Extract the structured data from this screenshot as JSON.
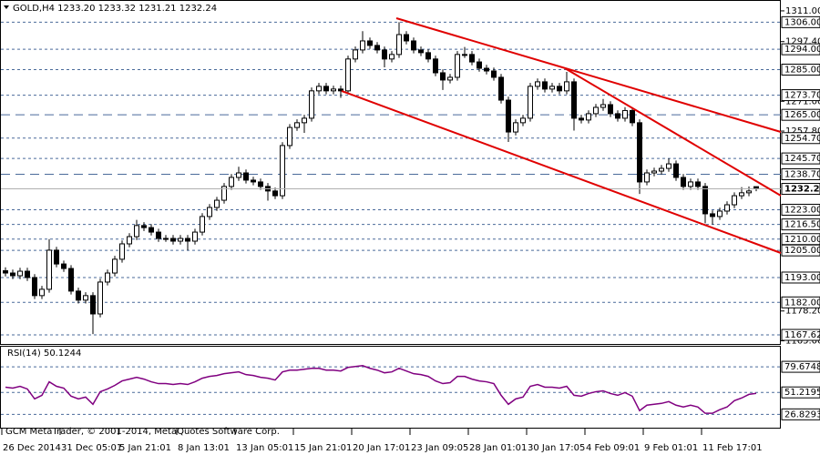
{
  "chart_data": {
    "type": "candlestick",
    "title": "GOLD,H4  1233.20 1233.32 1231.21 1232.24",
    "footer": "GCM MetaTrader, © 2001-2014, MetaQuotes Software Corp.",
    "bull_color": "#ffffff",
    "bear_color": "#000000",
    "ylim": [
      1163.6,
      1315.0
    ],
    "yticks": [
      {
        "value": 1311,
        "label": "1311.00"
      },
      {
        "value": 1297.4,
        "label": "1297.40"
      },
      {
        "value": 1271,
        "label": "1271.00"
      },
      {
        "value": 1257.8,
        "label": "1257.80"
      },
      {
        "value": 1178.2,
        "label": "1178.20"
      },
      {
        "value": 1165,
        "label": "1165.00"
      }
    ],
    "levels": [
      {
        "value": 1306,
        "label": "1306.00"
      },
      {
        "value": 1294,
        "label": "1294.00"
      },
      {
        "value": 1285,
        "label": "1285.00"
      },
      {
        "value": 1273.7,
        "label": "1273.70"
      },
      {
        "value": 1254.7,
        "label": "1254.70"
      },
      {
        "value": 1245.7,
        "label": "1245.70"
      },
      {
        "value": 1223,
        "label": "1223.00"
      },
      {
        "value": 1216.5,
        "label": "1216.50"
      },
      {
        "value": 1210,
        "label": "1210.00"
      },
      {
        "value": 1205,
        "label": "1205.00"
      },
      {
        "value": 1193,
        "label": "1193.00"
      },
      {
        "value": 1182,
        "label": "1182.00"
      },
      1167.62
    ],
    "major_levels": [
      {
        "value": 1265,
        "label": "1265.00"
      },
      {
        "value": 1238.7,
        "label": "1238.70"
      }
    ],
    "categories": [
      "26 Dec 2014",
      null,
      null,
      null,
      null,
      null,
      null,
      null,
      "31 Dec 05:01",
      null,
      null,
      null,
      null,
      null,
      null,
      null,
      "5 Jan 21:01",
      null,
      null,
      null,
      null,
      null,
      null,
      null,
      "8 Jan 13:01",
      null,
      null,
      null,
      null,
      null,
      null,
      null,
      "13 Jan 05:01",
      null,
      null,
      null,
      null,
      null,
      null,
      null,
      "15 Jan 21:01",
      null,
      null,
      null,
      null,
      null,
      null,
      null,
      "20 Jan 17:01",
      null,
      null,
      null,
      null,
      null,
      null,
      null,
      "23 Jan 09:05",
      null,
      null,
      null,
      null,
      null,
      null,
      null,
      "28 Jan 01:01",
      null,
      null,
      null,
      null,
      null,
      null,
      null,
      "30 Jan 17:05",
      null,
      null,
      null,
      null,
      null,
      null,
      null,
      "4 Feb 09:01",
      null,
      null,
      null,
      null,
      null,
      null,
      null,
      "9 Feb 01:01",
      null,
      null,
      null,
      null,
      null,
      null,
      null,
      "11 Feb 17:01",
      null,
      null,
      null,
      null,
      null,
      null,
      null
    ],
    "candles": [
      [
        1196.0,
        1197.5,
        1193.5,
        1195.0
      ],
      [
        1195.0,
        1196.5,
        1192.3,
        1193.8
      ],
      [
        1193.8,
        1197.3,
        1192.3,
        1195.8
      ],
      [
        1195.8,
        1197.3,
        1191.5,
        1193.0
      ],
      [
        1193.0,
        1194.5,
        1183.5,
        1185.0
      ],
      [
        1185.0,
        1189.3,
        1183.5,
        1187.8
      ],
      [
        1187.8,
        1210.0,
        1186.3,
        1205.1
      ],
      [
        1205.1,
        1206.6,
        1197.5,
        1199.0
      ],
      [
        1199.0,
        1200.5,
        1195.5,
        1197.0
      ],
      [
        1197.0,
        1198.5,
        1185.5,
        1187.0
      ],
      [
        1187.0,
        1188.5,
        1181.5,
        1183.0
      ],
      [
        1183.0,
        1186.5,
        1181.5,
        1185.0
      ],
      [
        1185.0,
        1186.5,
        1168.0,
        1176.9
      ],
      [
        1176.9,
        1192.5,
        1175.4,
        1191.0
      ],
      [
        1191.0,
        1196.5,
        1189.5,
        1195.0
      ],
      [
        1195.0,
        1202.6,
        1193.5,
        1201.1
      ],
      [
        1201.1,
        1209.4,
        1199.6,
        1207.9
      ],
      [
        1207.9,
        1212.6,
        1206.4,
        1211.1
      ],
      [
        1211.1,
        1218.5,
        1209.6,
        1216.0
      ],
      [
        1216.0,
        1217.5,
        1213.6,
        1215.1
      ],
      [
        1215.1,
        1216.6,
        1211.6,
        1213.1
      ],
      [
        1213.1,
        1214.6,
        1208.8,
        1210.3
      ],
      [
        1210.3,
        1211.8,
        1208.8,
        1210.3
      ],
      [
        1210.3,
        1211.8,
        1207.6,
        1209.1
      ],
      [
        1209.1,
        1211.8,
        1207.6,
        1210.3
      ],
      [
        1210.3,
        1211.8,
        1205.0,
        1209.1
      ],
      [
        1209.1,
        1214.6,
        1207.6,
        1213.1
      ],
      [
        1213.1,
        1221.5,
        1211.6,
        1220.0
      ],
      [
        1220.0,
        1225.5,
        1218.5,
        1224.0
      ],
      [
        1224.0,
        1228.7,
        1222.5,
        1227.2
      ],
      [
        1227.2,
        1234.8,
        1225.7,
        1233.3
      ],
      [
        1233.3,
        1238.8,
        1231.8,
        1237.3
      ],
      [
        1237.3,
        1242.0,
        1235.8,
        1239.3
      ],
      [
        1239.3,
        1240.8,
        1234.6,
        1236.1
      ],
      [
        1236.1,
        1237.6,
        1233.8,
        1235.3
      ],
      [
        1235.3,
        1236.8,
        1231.8,
        1233.3
      ],
      [
        1233.3,
        1234.8,
        1227.0,
        1231.3
      ],
      [
        1231.3,
        1232.8,
        1227.7,
        1229.2
      ],
      [
        1229.2,
        1252.9,
        1227.7,
        1251.4
      ],
      [
        1251.4,
        1260.9,
        1249.9,
        1259.4
      ],
      [
        1259.4,
        1263.0,
        1257.9,
        1261.5
      ],
      [
        1261.5,
        1265.0,
        1257.0,
        1263.5
      ],
      [
        1263.5,
        1277.1,
        1262.0,
        1275.6
      ],
      [
        1275.6,
        1279.1,
        1274.1,
        1277.6
      ],
      [
        1277.6,
        1279.1,
        1274.1,
        1275.6
      ],
      [
        1275.6,
        1277.9,
        1274.1,
        1276.4
      ],
      [
        1276.4,
        1277.9,
        1272.5,
        1275.6
      ],
      [
        1275.6,
        1291.2,
        1274.1,
        1289.7
      ],
      [
        1289.7,
        1295.2,
        1288.2,
        1293.7
      ],
      [
        1293.7,
        1302.0,
        1292.2,
        1297.7
      ],
      [
        1297.7,
        1299.2,
        1294.2,
        1295.7
      ],
      [
        1295.7,
        1297.2,
        1292.2,
        1293.7
      ],
      [
        1293.7,
        1295.2,
        1286.0,
        1289.7
      ],
      [
        1289.7,
        1293.2,
        1288.2,
        1291.7
      ],
      [
        1291.7,
        1306.0,
        1290.2,
        1300.5
      ],
      [
        1300.5,
        1302.0,
        1296.2,
        1297.7
      ],
      [
        1297.7,
        1299.2,
        1292.2,
        1293.7
      ],
      [
        1293.7,
        1295.2,
        1291.0,
        1292.5
      ],
      [
        1292.5,
        1294.0,
        1288.2,
        1289.7
      ],
      [
        1289.7,
        1291.2,
        1282.1,
        1283.6
      ],
      [
        1283.6,
        1285.1,
        1276.0,
        1280.4
      ],
      [
        1280.4,
        1283.1,
        1278.9,
        1281.6
      ],
      [
        1281.6,
        1293.2,
        1280.1,
        1291.7
      ],
      [
        1291.7,
        1295.0,
        1290.2,
        1291.7
      ],
      [
        1291.7,
        1293.2,
        1286.9,
        1288.4
      ],
      [
        1288.4,
        1289.9,
        1284.1,
        1285.6
      ],
      [
        1285.6,
        1287.1,
        1282.9,
        1284.4
      ],
      [
        1284.4,
        1285.9,
        1280.1,
        1281.6
      ],
      [
        1281.6,
        1283.1,
        1270.0,
        1271.5
      ],
      [
        1271.5,
        1273.0,
        1253.0,
        1257.4
      ],
      [
        1257.4,
        1263.0,
        1255.9,
        1261.5
      ],
      [
        1261.5,
        1265.0,
        1260.0,
        1263.5
      ],
      [
        1263.5,
        1279.1,
        1262.0,
        1277.6
      ],
      [
        1277.6,
        1281.1,
        1276.1,
        1279.6
      ],
      [
        1279.6,
        1281.1,
        1274.9,
        1276.4
      ],
      [
        1276.4,
        1279.1,
        1274.9,
        1277.6
      ],
      [
        1277.6,
        1279.1,
        1274.1,
        1275.6
      ],
      [
        1275.6,
        1284.0,
        1274.1,
        1279.6
      ],
      [
        1279.6,
        1281.1,
        1258.0,
        1263.5
      ],
      [
        1263.5,
        1265.0,
        1261.2,
        1262.7
      ],
      [
        1262.7,
        1267.0,
        1261.2,
        1265.5
      ],
      [
        1265.5,
        1269.8,
        1264.0,
        1268.3
      ],
      [
        1268.3,
        1272.0,
        1266.8,
        1269.5
      ],
      [
        1269.5,
        1271.0,
        1264.0,
        1265.5
      ],
      [
        1265.5,
        1267.0,
        1262.0,
        1263.5
      ],
      [
        1263.5,
        1268.4,
        1262.0,
        1266.9
      ],
      [
        1266.9,
        1268.4,
        1260.0,
        1261.5
      ],
      [
        1261.5,
        1263.0,
        1230.0,
        1235.3
      ],
      [
        1235.3,
        1240.8,
        1233.8,
        1239.3
      ],
      [
        1239.3,
        1241.6,
        1237.8,
        1240.1
      ],
      [
        1240.1,
        1242.8,
        1238.6,
        1241.3
      ],
      [
        1241.3,
        1245.7,
        1239.8,
        1243.3
      ],
      [
        1243.3,
        1244.8,
        1235.8,
        1237.3
      ],
      [
        1237.3,
        1238.8,
        1231.8,
        1233.3
      ],
      [
        1233.3,
        1236.8,
        1231.8,
        1235.3
      ],
      [
        1235.3,
        1236.8,
        1231.8,
        1233.3
      ],
      [
        1233.3,
        1234.8,
        1217.0,
        1221.2
      ],
      [
        1221.2,
        1222.7,
        1216.5,
        1220.0
      ],
      [
        1220.0,
        1223.9,
        1218.5,
        1222.4
      ],
      [
        1222.4,
        1226.7,
        1220.9,
        1225.2
      ],
      [
        1225.2,
        1230.7,
        1223.7,
        1229.2
      ],
      [
        1229.2,
        1233.0,
        1227.7,
        1230.5
      ],
      [
        1230.5,
        1233.32,
        1229.0,
        1231.3
      ],
      [
        1233.2,
        1233.32,
        1231.21,
        1232.24
      ]
    ],
    "rsi": {
      "title": "RSI(14) 50.1244",
      "color": "#800080",
      "ylim": [
        12,
        102
      ],
      "yticks": [
        79.6748,
        51.2195,
        26.8293
      ],
      "values": [
        57,
        56,
        58,
        55,
        44,
        48,
        63,
        58,
        56,
        47,
        44,
        46,
        38,
        52,
        55,
        59,
        64,
        66,
        68,
        66,
        63,
        61,
        61,
        60,
        61,
        60,
        63,
        67,
        69,
        70,
        72,
        73,
        74,
        71,
        70,
        68,
        67,
        65,
        74,
        76,
        76,
        77,
        78,
        78,
        76,
        76,
        75,
        79,
        80,
        81,
        78,
        76,
        73,
        74,
        78,
        75,
        72,
        71,
        69,
        64,
        61,
        62,
        69,
        69,
        66,
        64,
        63,
        61,
        48,
        38,
        44,
        46,
        58,
        60,
        57,
        57,
        56,
        58,
        48,
        47,
        50,
        52,
        53,
        50,
        48,
        51,
        47,
        31,
        37,
        38,
        39,
        41,
        37,
        35,
        37,
        35,
        28,
        28,
        32,
        35,
        42,
        45,
        49,
        50.1244
      ]
    }
  }
}
